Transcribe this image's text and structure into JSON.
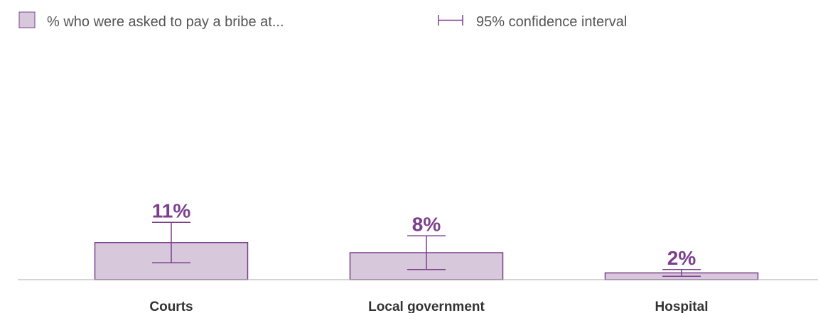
{
  "legend": {
    "bar_label": "% who were asked to pay a bribe at...",
    "ci_label": "95% confidence interval"
  },
  "colors": {
    "bar_fill": "#d8c8dc",
    "bar_stroke": "#7b3f8c",
    "value_text": "#7b3f8c",
    "baseline": "#aaaaaa"
  },
  "chart_data": {
    "type": "bar",
    "categories": [
      "Courts",
      "Local government",
      "Hospital"
    ],
    "values": [
      11,
      8,
      2
    ],
    "value_labels": [
      "11%",
      "8%",
      "2%"
    ],
    "ci_low": [
      5,
      3,
      1
    ],
    "ci_high": [
      17,
      13,
      3
    ],
    "ylim": [
      0,
      100
    ],
    "grid": false,
    "legend_position": "top-left"
  }
}
